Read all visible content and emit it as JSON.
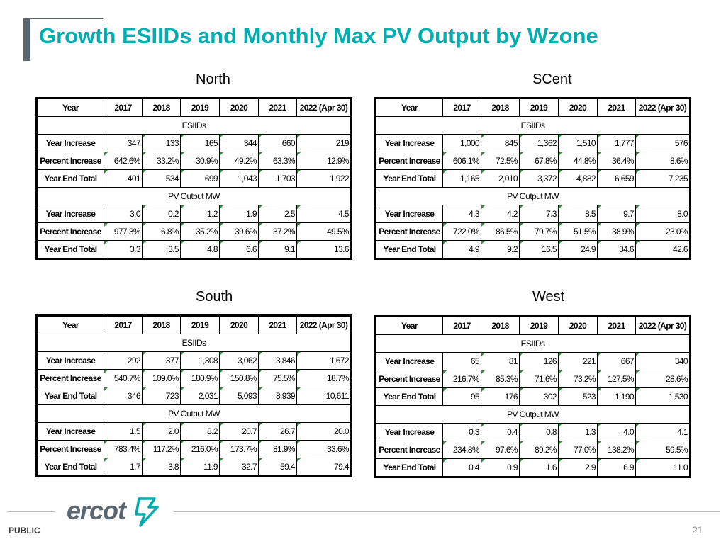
{
  "title": "Growth ESIIDs and Monthly Max PV Output by Wzone",
  "columns": [
    "Year",
    "2017",
    "2018",
    "2019",
    "2020",
    "2021",
    "2022 (Apr 30)"
  ],
  "section_esiids": "ESIIDs",
  "section_pv": "PV Output MW",
  "row_labels": [
    "Year Increase",
    "Percent Increase",
    "Year End Total"
  ],
  "zones": {
    "north": {
      "name": "North",
      "esiids": [
        [
          "347",
          "133",
          "165",
          "344",
          "660",
          "219"
        ],
        [
          "642.6%",
          "33.2%",
          "30.9%",
          "49.2%",
          "63.3%",
          "12.9%"
        ],
        [
          "401",
          "534",
          "699",
          "1,043",
          "1,703",
          "1,922"
        ]
      ],
      "pv": [
        [
          "3.0",
          "0.2",
          "1.2",
          "1.9",
          "2.5",
          "4.5"
        ],
        [
          "977.3%",
          "6.8%",
          "35.2%",
          "39.6%",
          "37.2%",
          "49.5%"
        ],
        [
          "3.3",
          "3.5",
          "4.8",
          "6.6",
          "9.1",
          "13.6"
        ]
      ]
    },
    "scent": {
      "name": "SCent",
      "esiids": [
        [
          "1,000",
          "845",
          "1,362",
          "1,510",
          "1,777",
          "576"
        ],
        [
          "606.1%",
          "72.5%",
          "67.8%",
          "44.8%",
          "36.4%",
          "8.6%"
        ],
        [
          "1,165",
          "2,010",
          "3,372",
          "4,882",
          "6,659",
          "7,235"
        ]
      ],
      "pv": [
        [
          "4.3",
          "4.2",
          "7.3",
          "8.5",
          "9.7",
          "8.0"
        ],
        [
          "722.0%",
          "86.5%",
          "79.7%",
          "51.5%",
          "38.9%",
          "23.0%"
        ],
        [
          "4.9",
          "9.2",
          "16.5",
          "24.9",
          "34.6",
          "42.6"
        ]
      ]
    },
    "south": {
      "name": "South",
      "esiids": [
        [
          "292",
          "377",
          "1,308",
          "3,062",
          "3,846",
          "1,672"
        ],
        [
          "540.7%",
          "109.0%",
          "180.9%",
          "150.8%",
          "75.5%",
          "18.7%"
        ],
        [
          "346",
          "723",
          "2,031",
          "5,093",
          "8,939",
          "10,611"
        ]
      ],
      "pv": [
        [
          "1.5",
          "2.0",
          "8.2",
          "20.7",
          "26.7",
          "20.0"
        ],
        [
          "783.4%",
          "117.2%",
          "216.0%",
          "173.7%",
          "81.9%",
          "33.6%"
        ],
        [
          "1.7",
          "3.8",
          "11.9",
          "32.7",
          "59.4",
          "79.4"
        ]
      ]
    },
    "west": {
      "name": "West",
      "esiids": [
        [
          "65",
          "81",
          "126",
          "221",
          "667",
          "340"
        ],
        [
          "216.7%",
          "85.3%",
          "71.6%",
          "73.2%",
          "127.5%",
          "28.6%"
        ],
        [
          "95",
          "176",
          "302",
          "523",
          "1,190",
          "1,530"
        ]
      ],
      "pv": [
        [
          "0.3",
          "0.4",
          "0.8",
          "1.3",
          "4.0",
          "4.1"
        ],
        [
          "234.8%",
          "97.6%",
          "89.2%",
          "77.0%",
          "138.2%",
          "59.5%"
        ],
        [
          "0.4",
          "0.9",
          "1.6",
          "2.9",
          "6.9",
          "11.0"
        ]
      ]
    }
  },
  "footer": {
    "logo_text": "ercot",
    "classification": "PUBLIC",
    "page_number": "21"
  },
  "colors": {
    "title": "#00aeb0",
    "accent_bar": "#5b6770",
    "cell_marker": "#2e8b3a"
  }
}
